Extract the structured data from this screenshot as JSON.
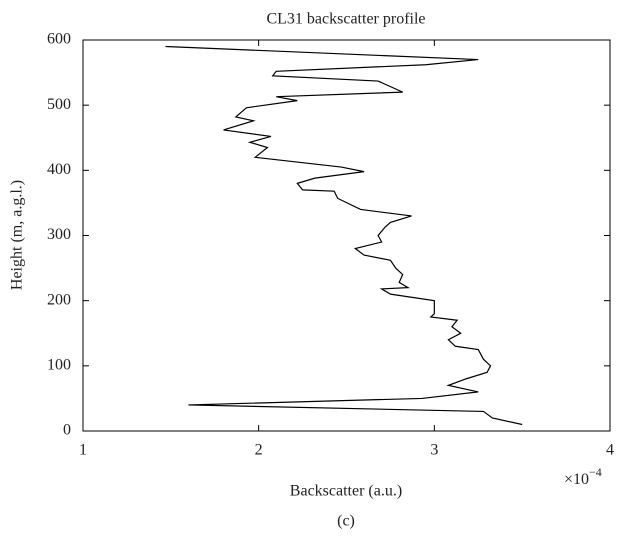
{
  "chart_data": {
    "type": "line",
    "title": "CL31 backscatter profile",
    "x_label": "Backscatter (a.u.)",
    "y_label": "Height (m, a.g.l.)",
    "x_multiplier": "×10",
    "x_multiplier_exponent": "−4",
    "caption": "(c)",
    "xlim": [
      1,
      4
    ],
    "xticks": [
      1,
      2,
      3,
      4
    ],
    "ylim": [
      0,
      600
    ],
    "yticks": [
      0,
      100,
      200,
      300,
      400,
      500,
      600
    ],
    "series": [
      {
        "color": "#000000",
        "x": [
          1.47,
          3.25,
          2.95,
          2.1,
          2.08,
          2.68,
          2.82,
          2.1,
          2.22,
          1.93,
          1.87,
          1.97,
          1.8,
          2.07,
          1.95,
          2.05,
          1.98,
          2.47,
          2.6,
          2.32,
          2.22,
          2.25,
          2.43,
          2.45,
          2.58,
          2.87,
          2.75,
          2.72,
          2.68,
          2.7,
          2.55,
          2.6,
          2.75,
          2.78,
          2.82,
          2.8,
          2.85,
          2.7,
          2.75,
          3.0,
          3.0,
          2.98,
          3.13,
          3.1,
          3.15,
          3.08,
          3.12,
          3.25,
          3.28,
          3.32,
          3.3,
          3.18,
          3.08,
          3.25,
          2.93,
          1.6,
          3.28,
          3.33,
          3.5
        ],
        "values": [
          590,
          570,
          562,
          552,
          545,
          537,
          520,
          513,
          507,
          496,
          482,
          476,
          462,
          452,
          443,
          435,
          420,
          405,
          398,
          388,
          380,
          370,
          368,
          357,
          340,
          330,
          320,
          313,
          300,
          290,
          280,
          270,
          262,
          250,
          240,
          228,
          220,
          218,
          210,
          200,
          180,
          175,
          170,
          160,
          150,
          140,
          130,
          125,
          110,
          100,
          90,
          80,
          70,
          60,
          50,
          40,
          30,
          20,
          10
        ]
      }
    ]
  }
}
